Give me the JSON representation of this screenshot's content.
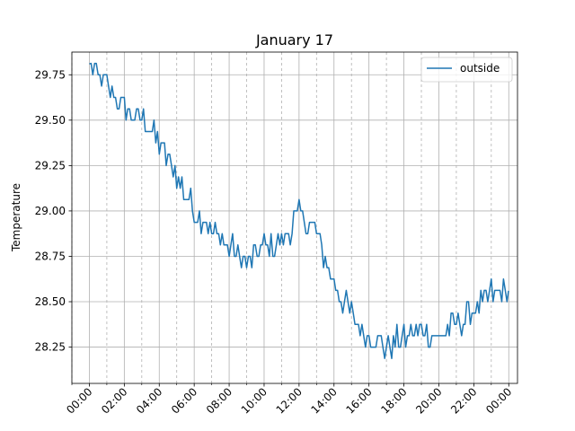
{
  "chart_data": {
    "type": "line",
    "title": "January 17",
    "xlabel": "",
    "ylabel": "Temperature",
    "xlim": [
      "2024-01-16T23:00",
      "2024-01-18T00:30"
    ],
    "ylim": [
      28.05,
      29.875
    ],
    "grid": {
      "x_major": "solid",
      "x_minor": "dashed",
      "y_major": "solid"
    },
    "legend": {
      "placement": "top-right"
    },
    "x_ticks": [
      "00:00",
      "02:00",
      "04:00",
      "06:00",
      "08:00",
      "10:00",
      "12:00",
      "14:00",
      "16:00",
      "18:00",
      "20:00",
      "22:00",
      "00:00"
    ],
    "y_ticks": [
      "28.25",
      "28.50",
      "28.75",
      "29.00",
      "29.25",
      "29.50",
      "29.75"
    ],
    "series": [
      {
        "name": "outside",
        "color": "#1f77b4",
        "x": [
          "00:00",
          "01:00",
          "02:00",
          "03:00",
          "04:00",
          "05:00",
          "06:00",
          "07:00",
          "08:00",
          "09:00",
          "10:00",
          "11:00",
          "12:00",
          "13:00",
          "14:00",
          "15:00",
          "16:00",
          "17:00",
          "18:00",
          "19:00",
          "20:00",
          "21:00",
          "22:00",
          "23:00",
          "23:59"
        ],
        "y": [
          29.81,
          29.69,
          29.56,
          29.5,
          29.37,
          29.2,
          29.0,
          28.9,
          28.8,
          28.72,
          28.8,
          28.82,
          29.0,
          28.87,
          28.6,
          28.43,
          28.3,
          28.25,
          28.3,
          28.35,
          28.3,
          28.37,
          28.45,
          28.55,
          28.56
        ]
      }
    ]
  }
}
